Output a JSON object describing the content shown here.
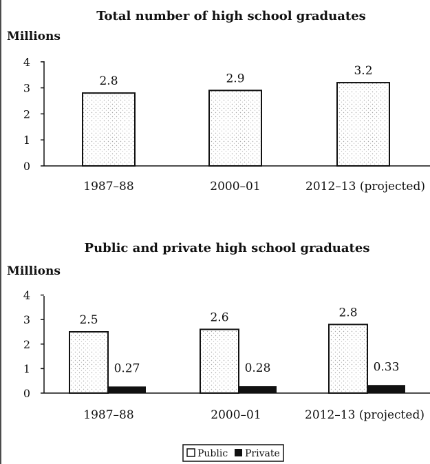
{
  "colors": {
    "public_fill": "#ffffff",
    "public_stipple": "#9a9a9a",
    "private_fill": "#111111",
    "axis": "#111111"
  },
  "chart_data": [
    {
      "type": "bar",
      "title": "Total number of high school graduates",
      "ylabel": "Millions",
      "categories": [
        "1987–88",
        "2000–01",
        "2012–13 (projected)"
      ],
      "yticks": [
        "0",
        "1",
        "2",
        "3",
        "4"
      ],
      "ylim": [
        0,
        4
      ],
      "series": [
        {
          "values": [
            2.8,
            2.9,
            3.2
          ],
          "labels": [
            "2.8",
            "2.9",
            "3.2"
          ],
          "style": "stippled"
        }
      ],
      "grid": false
    },
    {
      "type": "bar",
      "title": "Public and private high school graduates",
      "ylabel": "Millions",
      "categories": [
        "1987–88",
        "2000–01",
        "2012–13 (projected)"
      ],
      "yticks": [
        "0",
        "1",
        "2",
        "3",
        "4"
      ],
      "ylim": [
        0,
        4
      ],
      "series": [
        {
          "name": "Public",
          "values": [
            2.5,
            2.6,
            2.8
          ],
          "labels": [
            "2.5",
            "2.6",
            "2.8"
          ],
          "style": "stippled"
        },
        {
          "name": "Private",
          "values": [
            0.27,
            0.28,
            0.33
          ],
          "labels": [
            "0.27",
            "0.28",
            "0.33"
          ],
          "style": "solid"
        }
      ],
      "grid": false,
      "legend": "bottom-center"
    }
  ]
}
